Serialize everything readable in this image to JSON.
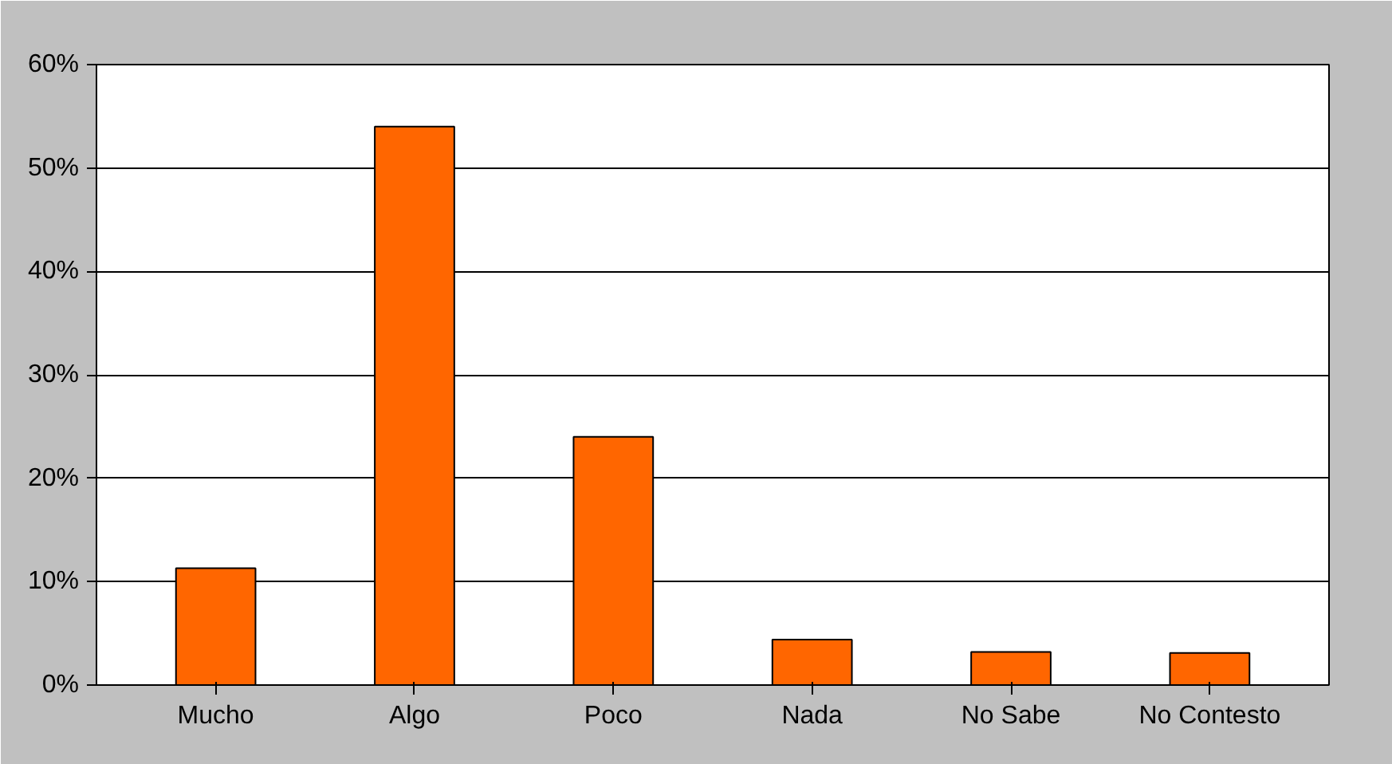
{
  "chart_data": {
    "type": "bar",
    "categories": [
      "Mucho",
      "Algo",
      "Poco",
      "Nada",
      "No Sabe",
      "No Contesto"
    ],
    "values": [
      11.3,
      54,
      24,
      4.4,
      3.2,
      3.1
    ],
    "color": "#ff6600",
    "ylim": [
      0,
      60
    ],
    "yticks": [
      {
        "value": 0,
        "label": "0%"
      },
      {
        "value": 10,
        "label": "10%"
      },
      {
        "value": 20,
        "label": "20%"
      },
      {
        "value": 30,
        "label": "30%"
      },
      {
        "value": 40,
        "label": "40%"
      },
      {
        "value": 50,
        "label": "50%"
      },
      {
        "value": 60,
        "label": "60%"
      }
    ],
    "grid": "y"
  }
}
